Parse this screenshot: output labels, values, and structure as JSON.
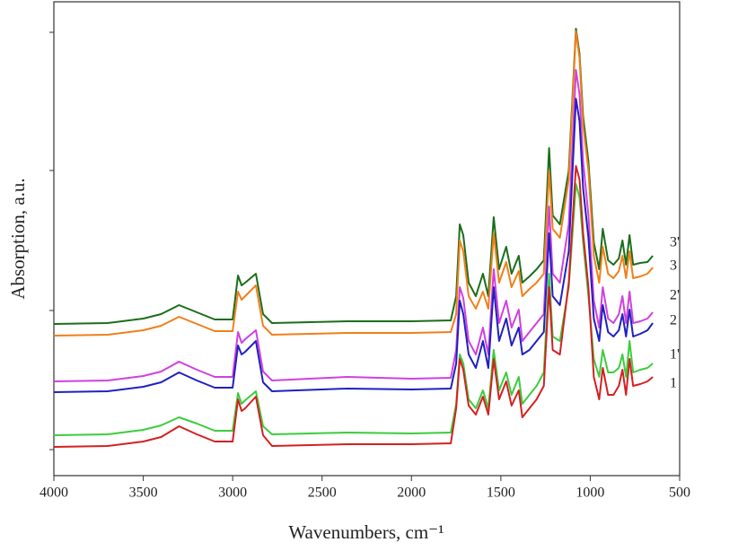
{
  "chart_data": {
    "type": "line",
    "xlabel": "Wavenumbers, cm⁻¹",
    "ylabel": "Absorption, a.u.",
    "x": [
      4000,
      3700,
      3500,
      3400,
      3300,
      3200,
      3100,
      3000,
      2970,
      2950,
      2930,
      2870,
      2830,
      2780,
      2360,
      2000,
      1780,
      1750,
      1730,
      1710,
      1680,
      1640,
      1600,
      1570,
      1540,
      1510,
      1470,
      1440,
      1400,
      1380,
      1340,
      1300,
      1260,
      1230,
      1210,
      1170,
      1120,
      1080,
      1060,
      1040,
      1010,
      980,
      950,
      930,
      900,
      870,
      840,
      820,
      800,
      780,
      760,
      720,
      680,
      650
    ],
    "series": [
      {
        "name": "3'",
        "color": "#1a6e1a",
        "values": [
          169,
          170,
          175,
          180,
          190,
          182,
          174,
          174,
          223,
          212,
          215,
          225,
          180,
          170,
          172,
          172,
          173,
          200,
          280,
          268,
          215,
          200,
          225,
          200,
          288,
          230,
          255,
          225,
          245,
          215,
          222,
          230,
          240,
          365,
          290,
          280,
          340,
          498,
          470,
          400,
          350,
          260,
          230,
          275,
          240,
          235,
          242,
          262,
          235,
          268,
          235,
          237,
          238,
          245
        ]
      },
      {
        "name": "3",
        "color": "#f07f1a",
        "values": [
          156,
          157,
          162,
          167,
          177,
          169,
          161,
          161,
          205,
          196,
          200,
          212,
          167,
          157,
          159,
          159,
          160,
          180,
          262,
          250,
          200,
          186,
          205,
          186,
          270,
          215,
          238,
          210,
          228,
          200,
          208,
          215,
          225,
          340,
          275,
          265,
          330,
          495,
          465,
          390,
          340,
          245,
          215,
          255,
          225,
          220,
          228,
          245,
          220,
          250,
          220,
          222,
          225,
          232
        ]
      },
      {
        "name": "2'",
        "color": "#d040e0",
        "values": [
          105,
          106,
          111,
          116,
          127,
          118,
          110,
          110,
          160,
          148,
          152,
          162,
          116,
          106,
          110,
          108,
          109,
          140,
          210,
          198,
          150,
          135,
          165,
          135,
          230,
          170,
          195,
          165,
          185,
          150,
          160,
          170,
          180,
          300,
          225,
          215,
          280,
          452,
          425,
          350,
          290,
          195,
          165,
          210,
          175,
          170,
          180,
          200,
          170,
          205,
          170,
          172,
          175,
          182
        ]
      },
      {
        "name": "2",
        "color": "#2020c0",
        "values": [
          93,
          94,
          99,
          104,
          115,
          106,
          98,
          98,
          145,
          135,
          138,
          150,
          104,
          94,
          97,
          96,
          97,
          125,
          195,
          180,
          135,
          120,
          150,
          120,
          210,
          150,
          175,
          145,
          165,
          135,
          140,
          150,
          160,
          270,
          200,
          190,
          250,
          420,
          395,
          320,
          265,
          175,
          150,
          190,
          160,
          155,
          162,
          180,
          155,
          185,
          155,
          158,
          162,
          170
        ]
      },
      {
        "name": "1'",
        "color": "#3ccc3c",
        "values": [
          45,
          46,
          51,
          56,
          65,
          58,
          50,
          50,
          92,
          80,
          84,
          94,
          55,
          46,
          48,
          47,
          48,
          80,
          135,
          125,
          85,
          75,
          95,
          75,
          140,
          95,
          115,
          90,
          110,
          80,
          90,
          100,
          115,
          225,
          155,
          150,
          210,
          325,
          310,
          260,
          200,
          130,
          110,
          140,
          115,
          115,
          120,
          135,
          110,
          150,
          115,
          118,
          120,
          125
        ]
      },
      {
        "name": "1",
        "color": "#d42020",
        "values": [
          32,
          33,
          38,
          43,
          55,
          46,
          38,
          38,
          85,
          72,
          75,
          88,
          45,
          33,
          35,
          35,
          36,
          75,
          130,
          118,
          78,
          68,
          88,
          68,
          130,
          85,
          105,
          78,
          95,
          65,
          75,
          85,
          100,
          210,
          140,
          135,
          215,
          345,
          330,
          270,
          210,
          110,
          85,
          120,
          90,
          90,
          100,
          118,
          90,
          130,
          100,
          102,
          105,
          110
        ]
      }
    ],
    "xlim": [
      4000,
      500
    ],
    "xticks": [
      4000,
      3500,
      3000,
      2500,
      2000,
      1500,
      1000,
      500
    ],
    "ylim": [
      0,
      528
    ],
    "yticks": [
      29,
      184,
      340,
      494
    ],
    "ytick_labels": false,
    "grid": false
  }
}
